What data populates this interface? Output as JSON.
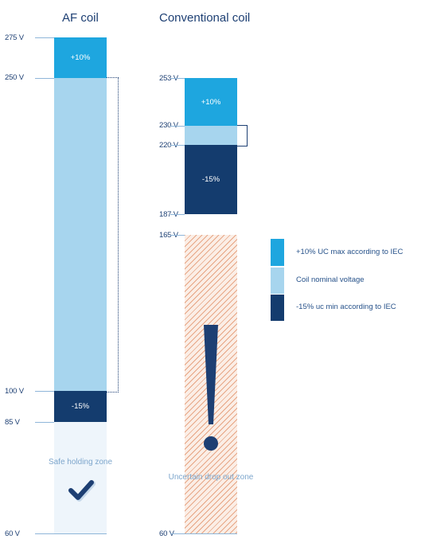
{
  "colors": {
    "upper": "#1ea6df",
    "nominal": "#a7d5ee",
    "lower": "#143c6e",
    "safe_zone": "#eef5fb",
    "hatch": "#e7a584",
    "hatch_bg": "#fbeee6",
    "label": "#1d3f73"
  },
  "icons": {
    "check": "checkmark-icon",
    "warning": "exclamation-icon"
  },
  "af": {
    "title": "AF coil",
    "voltages": {
      "v275": "275 V",
      "v250": "250 V",
      "v100": "100 V",
      "v85": "85 V",
      "v60": "60 V"
    },
    "upper_label": "+10%",
    "lower_label": "-15%",
    "zone_label": "Safe holding zone"
  },
  "conv": {
    "title": "Conventional coil",
    "voltages": {
      "v253": "253 V",
      "v230": "230 V",
      "v220": "220 V",
      "v187": "187 V",
      "v165": "165 V",
      "v60": "60 V"
    },
    "upper_label": "+10%",
    "lower_label": "-15%",
    "zone_label": "Uncertain drop out zone"
  },
  "legend": [
    {
      "label": "+10% UC max according to IEC",
      "color_key": "upper"
    },
    {
      "label": "Coil nominal voltage",
      "color_key": "nominal"
    },
    {
      "label": "-15% uc min according to IEC",
      "color_key": "lower"
    }
  ]
}
